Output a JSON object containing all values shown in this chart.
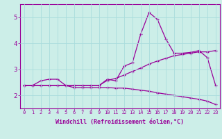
{
  "xlabel": "Windchill (Refroidissement éolien,°C)",
  "background_color": "#cceee8",
  "line_color": "#990099",
  "grid_color": "#aadddd",
  "xlim": [
    -0.5,
    23.5
  ],
  "ylim": [
    1.5,
    5.5
  ],
  "yticks": [
    2,
    3,
    4,
    5
  ],
  "xticks": [
    0,
    1,
    2,
    3,
    4,
    5,
    6,
    7,
    8,
    9,
    10,
    11,
    12,
    13,
    14,
    15,
    16,
    17,
    18,
    19,
    20,
    21,
    22,
    23
  ],
  "line1_x": [
    0,
    1,
    2,
    3,
    4,
    5,
    6,
    7,
    8,
    9,
    10,
    11,
    12,
    13,
    14,
    15,
    16,
    17,
    18,
    19,
    20,
    21,
    22,
    23
  ],
  "line1_y": [
    2.38,
    2.38,
    2.56,
    2.62,
    2.62,
    2.38,
    2.38,
    2.38,
    2.38,
    2.38,
    2.62,
    2.56,
    3.12,
    3.25,
    4.35,
    5.18,
    4.92,
    4.18,
    3.62,
    3.62,
    3.65,
    3.72,
    3.45,
    2.38
  ],
  "line2_x": [
    0,
    1,
    2,
    3,
    4,
    5,
    6,
    7,
    8,
    9,
    10,
    11,
    12,
    13,
    14,
    15,
    16,
    17,
    18,
    19,
    20,
    21,
    22,
    23
  ],
  "line2_y": [
    2.38,
    2.38,
    2.38,
    2.38,
    2.38,
    2.38,
    2.38,
    2.38,
    2.38,
    2.38,
    2.58,
    2.65,
    2.78,
    2.92,
    3.05,
    3.2,
    3.32,
    3.42,
    3.52,
    3.57,
    3.62,
    3.67,
    3.67,
    3.72
  ],
  "line3_x": [
    0,
    1,
    2,
    3,
    4,
    5,
    6,
    7,
    8,
    9,
    10,
    11,
    12,
    13,
    14,
    15,
    16,
    17,
    18,
    19,
    20,
    21,
    22,
    23
  ],
  "line3_y": [
    2.38,
    2.38,
    2.38,
    2.38,
    2.38,
    2.38,
    2.3,
    2.3,
    2.3,
    2.3,
    2.3,
    2.28,
    2.28,
    2.24,
    2.2,
    2.16,
    2.1,
    2.05,
    2.0,
    1.95,
    1.9,
    1.85,
    1.78,
    1.65
  ]
}
